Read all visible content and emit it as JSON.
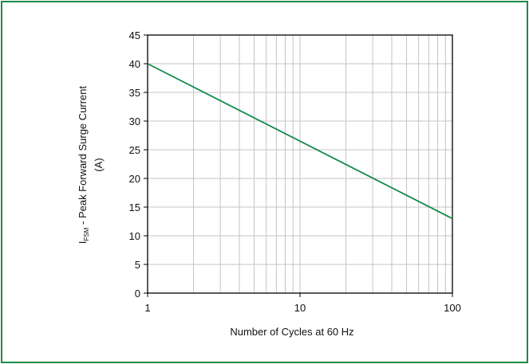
{
  "chart_data": {
    "type": "line",
    "title": "",
    "xlabel": "Number of Cycles at 60 Hz",
    "ylabel": {
      "symbol": "I",
      "subscript": "FSM",
      "text": " - Peak Forward Surge Current",
      "unit": "(A)"
    },
    "xscale": "log",
    "xlim": [
      1,
      100
    ],
    "ylim": [
      0,
      45
    ],
    "xticks": [
      1,
      10,
      100
    ],
    "yticks": [
      0,
      5,
      10,
      15,
      20,
      25,
      30,
      35,
      40,
      45
    ],
    "grid": true,
    "legend": "none",
    "series": [
      {
        "x": [
          1,
          100
        ],
        "y": [
          40,
          13
        ],
        "color": "#138a47"
      }
    ]
  },
  "colors": {
    "frame": "#1e8a4a",
    "grid": "#c4c4c4",
    "axis": "#000000",
    "line": "#138a47"
  }
}
